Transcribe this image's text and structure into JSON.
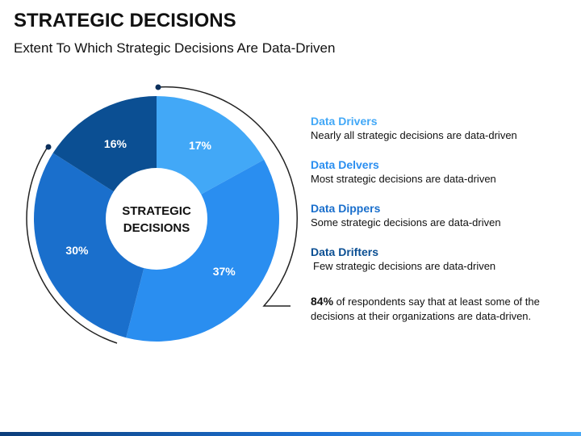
{
  "header": {
    "title": "STRATEGIC DECISIONS",
    "subtitle": "Extent To Which Strategic Decisions Are Data-Driven"
  },
  "chart_data": {
    "type": "pie",
    "center_label": [
      "STRATEGIC",
      "DECISIONS"
    ],
    "slices": [
      {
        "label": "17%",
        "value": 17,
        "color": "#42a8f7"
      },
      {
        "label": "37%",
        "value": 37,
        "color": "#2a8ef0"
      },
      {
        "label": "30%",
        "value": 30,
        "color": "#1a6fcc"
      },
      {
        "label": "16%",
        "value": 16,
        "color": "#0b4f93"
      }
    ]
  },
  "legend": [
    {
      "label": "Data Drivers",
      "desc": "Nearly all strategic decisions are data-driven",
      "color": "#42a8f7"
    },
    {
      "label": "Data Delvers",
      "desc": "Most strategic decisions are data-driven",
      "color": "#2a8ef0"
    },
    {
      "label": "Data Dippers",
      "desc": "Some strategic decisions are data-driven",
      "color": "#1a6fcc"
    },
    {
      "label": "Data Drifters",
      "desc": "Few strategic decisions are data-driven",
      "color": "#0b4f93"
    }
  ],
  "note": {
    "highlight": "84%",
    "line1": " of respondents say that at least some of the",
    "line2": "decisions at their organizations are data-driven."
  }
}
